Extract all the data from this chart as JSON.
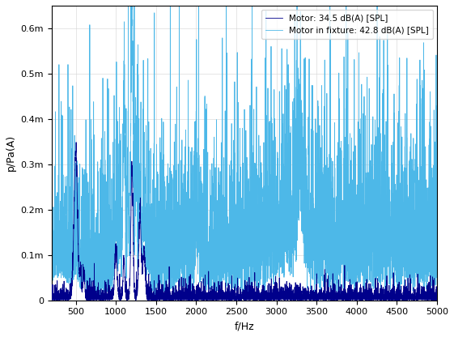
{
  "title": "",
  "xlabel": "f/Hz",
  "ylabel": "p/Pa(A)",
  "xlim": [
    200,
    5000
  ],
  "ylim": [
    0,
    0.00065
  ],
  "yticks": [
    0,
    0.0001,
    0.0002,
    0.0003,
    0.0004,
    0.0005,
    0.0006
  ],
  "ytick_labels": [
    "0",
    "0.1m",
    "0.2m",
    "0.3m",
    "0.4m",
    "0.5m",
    "0.6m"
  ],
  "xticks": [
    500,
    1000,
    1500,
    2000,
    2500,
    3000,
    3500,
    4000,
    4500,
    5000
  ],
  "legend_motor": "Motor: 34.5 dB(A) [SPL]",
  "legend_fixture": "Motor in fixture: 42.8 dB(A) [SPL]",
  "color_motor": "#00008B",
  "color_fixture": "#4db8e8",
  "figsize": [
    5.61,
    4.16
  ],
  "dpi": 100
}
